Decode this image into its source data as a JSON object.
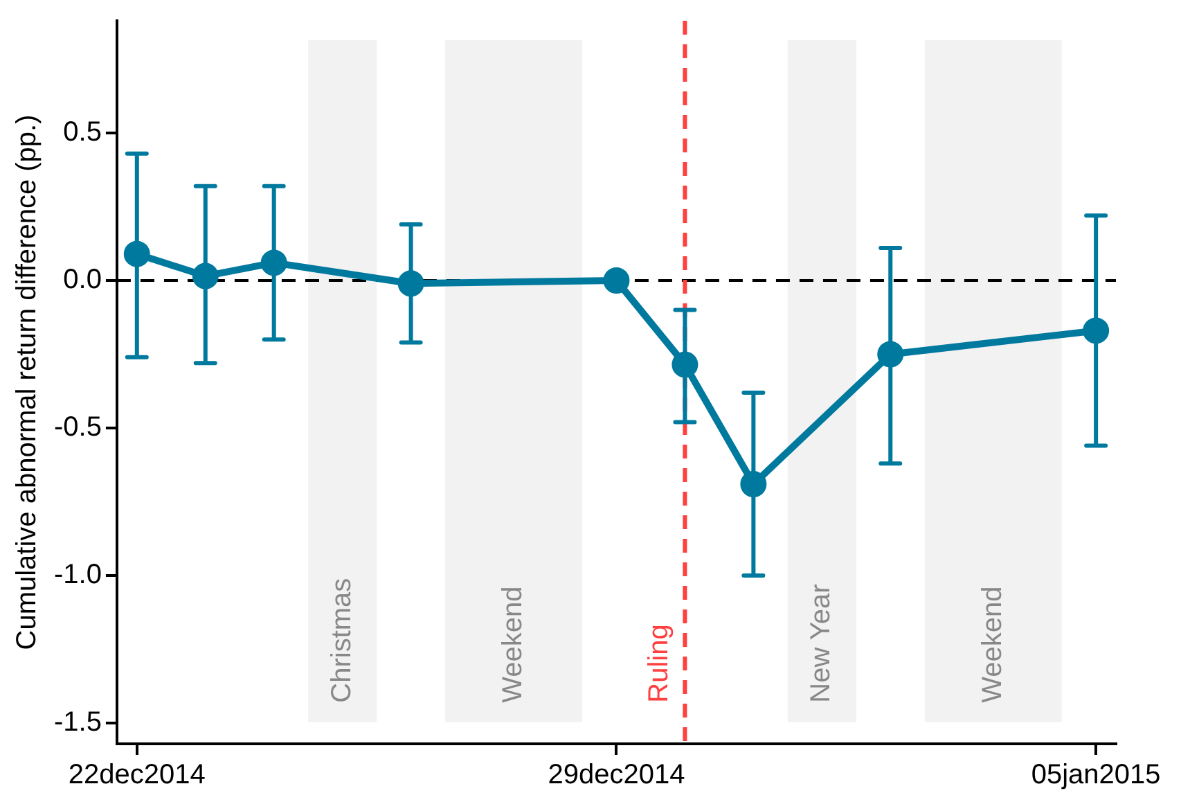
{
  "chart_data": {
    "type": "line",
    "ylabel": "Cumulative abnormal return difference (pp.)",
    "x": [
      "2014-12-22",
      "2014-12-23",
      "2014-12-24",
      "2014-12-26",
      "2014-12-29",
      "2014-12-30",
      "2014-12-31",
      "2015-01-02",
      "2015-01-05"
    ],
    "series": [
      {
        "color": "#00799e",
        "values": [
          0.09,
          0.015,
          0.06,
          -0.01,
          0.0,
          -0.285,
          -0.69,
          -0.25,
          -0.17
        ],
        "errors": [
          [
            -0.26,
            0.43
          ],
          [
            -0.28,
            0.32
          ],
          [
            -0.2,
            0.32
          ],
          [
            -0.21,
            0.19
          ],
          null,
          [
            -0.48,
            -0.1
          ],
          [
            -1.0,
            -0.38
          ],
          [
            -0.62,
            0.11
          ],
          [
            -0.56,
            0.22
          ]
        ]
      }
    ],
    "xlim": [
      "2014-12-21T17:00",
      "2015-01-05T07:00"
    ],
    "xticks": [
      {
        "value": "2014-12-22",
        "label": "22dec2014"
      },
      {
        "value": "2014-12-29",
        "label": "29dec2014"
      },
      {
        "value": "2015-01-05",
        "label": "05jan2015"
      }
    ],
    "ylim": [
      -1.57,
      0.88
    ],
    "yticks": [
      {
        "value": -1.5,
        "label": "-1.5"
      },
      {
        "value": -1,
        "label": "-1.0"
      },
      {
        "value": -0.5,
        "label": "-0.5"
      },
      {
        "value": 0,
        "label": "0.0"
      },
      {
        "value": 0.5,
        "label": "0.5"
      }
    ],
    "bands": [
      {
        "axis": "x",
        "from": "2014-12-24T12:00",
        "to": "2014-12-25T12:00",
        "label": "Christmas",
        "color": "#f2f2f2"
      },
      {
        "axis": "x",
        "from": "2014-12-26T12:00",
        "to": "2014-12-28T12:00",
        "label": "Weekend",
        "color": "#f2f2f2"
      },
      {
        "axis": "x",
        "from": "2014-12-31T12:00",
        "to": "2015-01-01T12:00",
        "label": "New Year",
        "color": "#f2f2f2"
      },
      {
        "axis": "x",
        "from": "2015-01-02T12:00",
        "to": "2015-01-04T12:00",
        "label": "Weekend",
        "color": "#f2f2f2"
      }
    ],
    "ref_lines": [
      {
        "axis": "y",
        "value": 0,
        "color": "#000000",
        "line_style": "dashed"
      },
      {
        "axis": "x",
        "value": "2014-12-30",
        "label": "Ruling",
        "color": "#ff4040",
        "line_style": "dashed"
      }
    ],
    "marker": "circle",
    "line_style": "solid",
    "grid": false,
    "legend": false
  }
}
